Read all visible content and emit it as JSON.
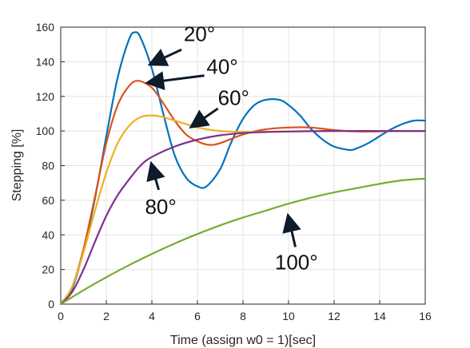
{
  "chart_data": {
    "type": "line",
    "xlabel": "Time (assign w0 = 1)[sec]",
    "ylabel": "Stepping [%]",
    "xlim": [
      0,
      16
    ],
    "ylim": [
      0,
      160
    ],
    "xticks": [
      0,
      2,
      4,
      6,
      8,
      10,
      12,
      14,
      16
    ],
    "yticks": [
      0,
      20,
      40,
      60,
      80,
      100,
      120,
      140,
      160
    ],
    "grid": true,
    "series": [
      {
        "name": "20°",
        "color": "#0072BD",
        "x": [
          0,
          0.5,
          1,
          1.5,
          2,
          2.5,
          3,
          3.25,
          3.5,
          4,
          4.5,
          5,
          5.5,
          6,
          6.4,
          7,
          7.5,
          8,
          8.5,
          9,
          9.6,
          10,
          10.5,
          11,
          11.5,
          12,
          12.7,
          13,
          13.5,
          14,
          14.5,
          15,
          15.5,
          16
        ],
        "y": [
          0,
          9,
          31,
          61,
          97,
          131,
          153,
          157,
          154,
          136,
          110,
          86,
          73,
          68,
          68,
          78,
          94,
          107,
          115,
          118,
          118,
          115,
          109,
          101,
          95,
          91,
          89,
          90,
          93,
          97,
          101,
          104,
          106,
          106
        ]
      },
      {
        "name": "40°",
        "color": "#D95319",
        "x": [
          0,
          0.5,
          1,
          1.5,
          2,
          2.5,
          3,
          3.4,
          4,
          4.5,
          5,
          5.5,
          6,
          6.5,
          7,
          8,
          9,
          10,
          11,
          12,
          13,
          14,
          15,
          16
        ],
        "y": [
          0,
          10,
          32,
          62,
          93,
          115,
          126,
          129,
          125,
          116,
          106,
          98,
          94,
          92,
          93,
          98,
          101,
          102,
          102,
          100.5,
          99.7,
          99.8,
          100,
          100
        ]
      },
      {
        "name": "60°",
        "color": "#EDB120",
        "x": [
          0,
          0.5,
          1,
          1.5,
          2,
          2.5,
          3,
          3.5,
          4,
          4.5,
          5,
          5.5,
          6,
          7,
          8,
          9,
          10,
          12,
          14,
          16
        ],
        "y": [
          0,
          10,
          30,
          54,
          76,
          93,
          103,
          108,
          109,
          108,
          106,
          104,
          102,
          100,
          99.5,
          99.5,
          99.8,
          100,
          100,
          100
        ]
      },
      {
        "name": "80°",
        "color": "#7E2F8E",
        "x": [
          0,
          0.5,
          1,
          1.5,
          2,
          2.5,
          3,
          3.5,
          4,
          5,
          6,
          7,
          8,
          9,
          10,
          12,
          14,
          16
        ],
        "y": [
          0,
          7,
          20,
          36,
          51,
          63,
          72,
          80,
          85,
          91,
          95,
          97.5,
          98.8,
          99.4,
          99.7,
          100,
          100,
          100
        ]
      },
      {
        "name": "100°",
        "color": "#77AC30",
        "x": [
          0,
          1,
          2,
          3,
          4,
          5,
          6,
          7,
          8,
          9,
          10,
          11,
          12,
          13,
          14,
          15,
          16
        ],
        "y": [
          0,
          8,
          15.5,
          22.5,
          29,
          35,
          40.5,
          45.5,
          50,
          54,
          58,
          61.5,
          64.5,
          67,
          69.5,
          71.5,
          72.5
        ]
      }
    ],
    "annotations": [
      {
        "text": "20°",
        "tip": [
          4.0,
          139
        ],
        "tail": [
          5.3,
          147
        ],
        "label": [
          5.4,
          152
        ]
      },
      {
        "text": "40°",
        "tip": [
          3.9,
          128
        ],
        "tail": [
          6.3,
          132
        ],
        "label": [
          6.4,
          133
        ]
      },
      {
        "text": "60°",
        "tip": [
          5.8,
          103
        ],
        "tail": [
          6.9,
          113
        ],
        "label": [
          6.9,
          115
        ]
      },
      {
        "text": "80°",
        "tip": [
          4.0,
          80
        ],
        "tail": [
          4.3,
          66
        ],
        "label": [
          3.7,
          52
        ]
      },
      {
        "text": "100°",
        "tip": [
          10.0,
          50
        ],
        "tail": [
          10.3,
          33
        ],
        "label": [
          9.4,
          20
        ]
      }
    ]
  }
}
